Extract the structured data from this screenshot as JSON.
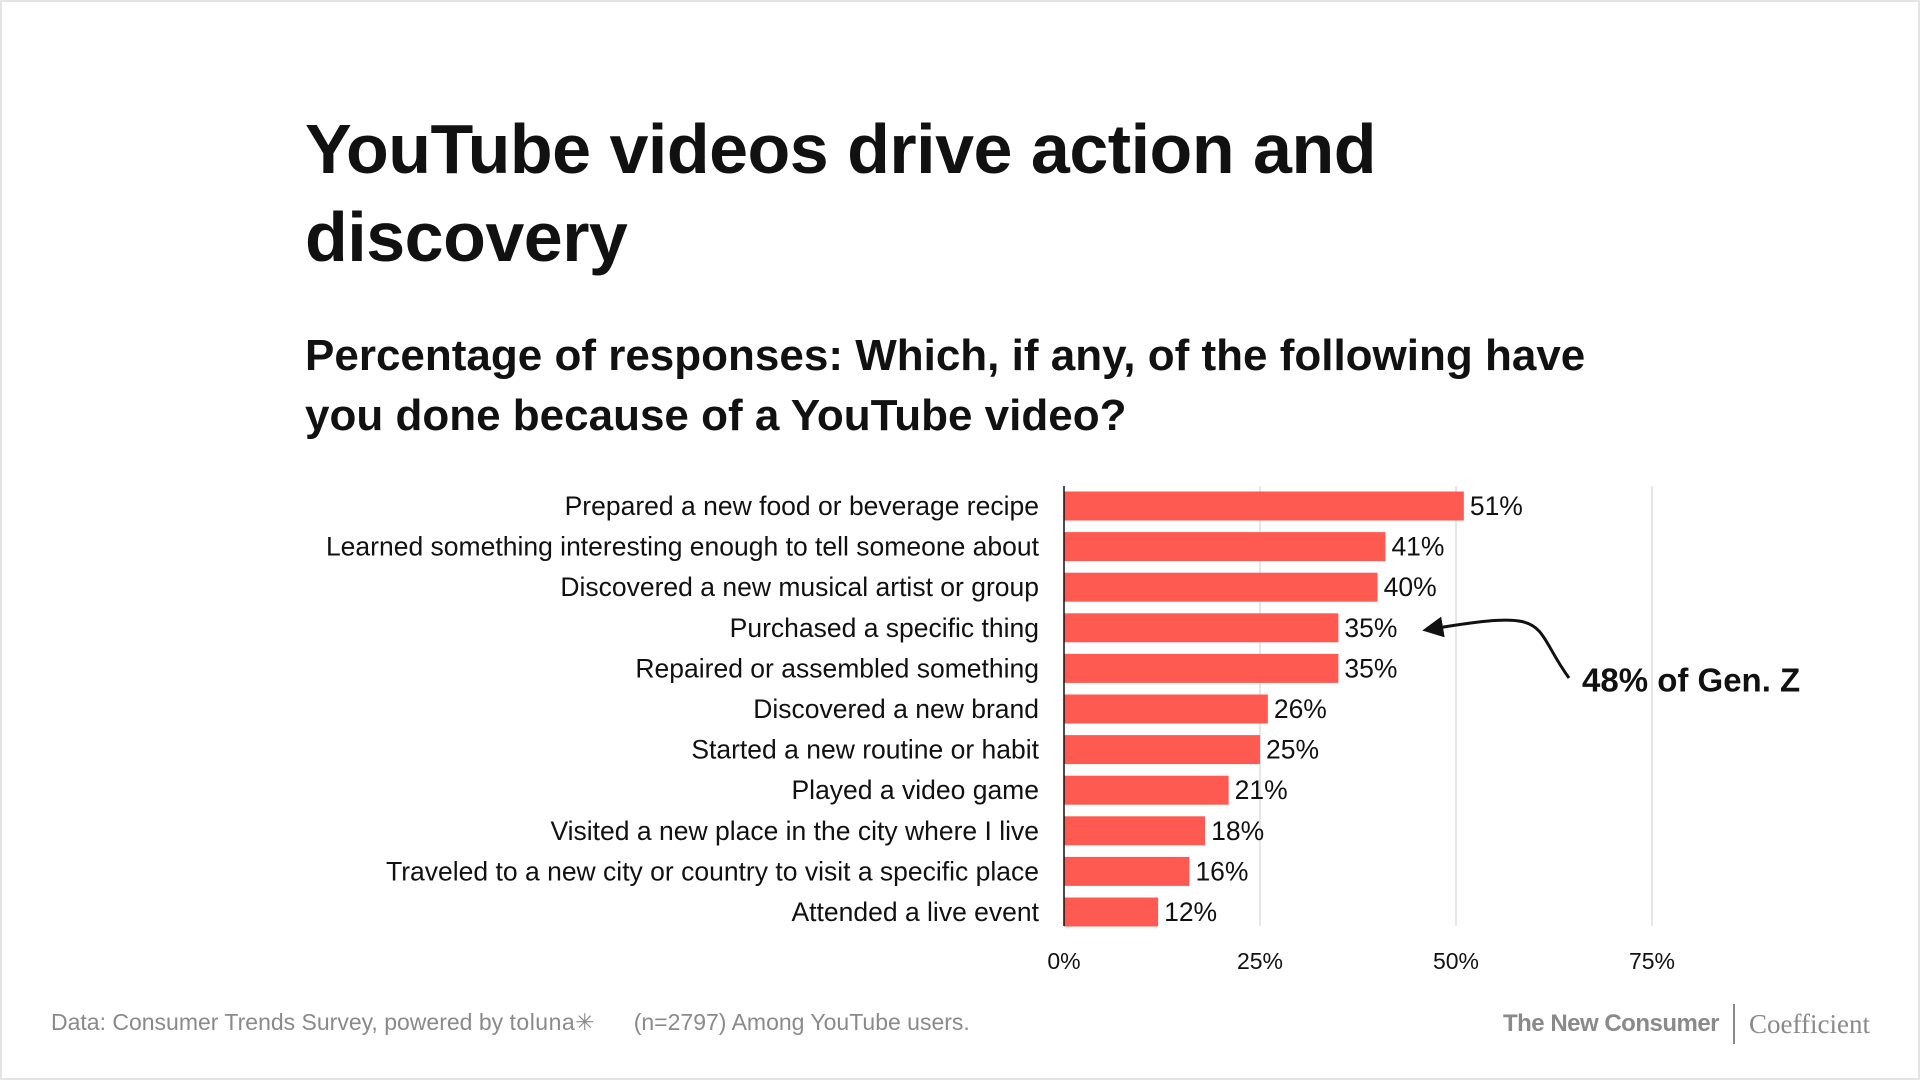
{
  "title": "YouTube videos drive action and discovery",
  "subtitle": "Percentage of responses: Which, if any, of the following have you done because of a YouTube video?",
  "chart_data": {
    "type": "bar",
    "orientation": "horizontal",
    "categories": [
      "Prepared a new food or beverage recipe",
      "Learned something interesting enough to tell someone about",
      "Discovered a new musical artist or group",
      "Purchased a specific thing",
      "Repaired or assembled something",
      "Discovered a new brand",
      "Started a new routine or habit",
      "Played a video game",
      "Visited a new place in the city where I live",
      "Traveled to a new city or country to visit a specific place",
      "Attended a live event"
    ],
    "values": [
      51,
      41,
      40,
      35,
      35,
      26,
      25,
      21,
      18,
      16,
      12
    ],
    "value_labels": [
      "51%",
      "41%",
      "40%",
      "35%",
      "35%",
      "26%",
      "25%",
      "21%",
      "18%",
      "16%",
      "12%"
    ],
    "xlim": [
      0,
      80
    ],
    "xticks": [
      0,
      25,
      50,
      75
    ],
    "xtick_labels": [
      "0%",
      "25%",
      "50%",
      "75%"
    ],
    "grid": true,
    "bar_color": "#ff5a51",
    "annotation": {
      "text": "48% of Gen. Z",
      "category_index": 3
    }
  },
  "footer": {
    "source_prefix": "Data: Consumer Trends Survey, powered by",
    "source_brand": "toluna✳",
    "note": "(n=2797) Among YouTube users.",
    "brand_primary": "The New Consumer",
    "brand_secondary": "Coefficient"
  }
}
